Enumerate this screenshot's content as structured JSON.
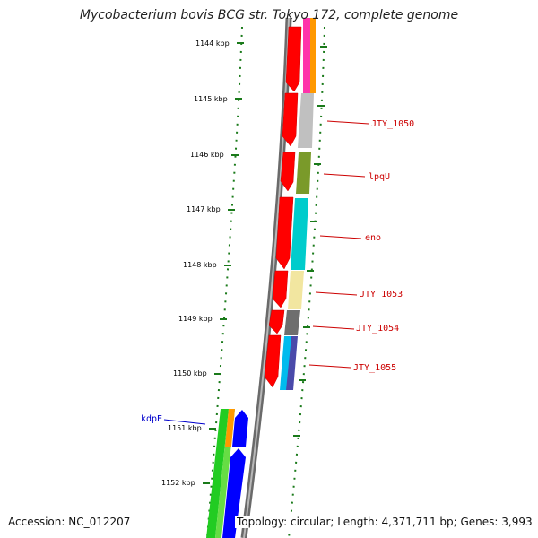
{
  "title": "Mycobacterium bovis BCG str. Tokyo 172, complete genome",
  "accession_text": "Accession: NC_012207",
  "topology_text": "Topology: circular; Length: 4,371,711 bp; Genes: 3,993",
  "scale_labels": [
    "1144 kbp",
    "1145 kbp",
    "1146 kbp",
    "1147 kbp",
    "1148 kbp",
    "1149 kbp",
    "1150 kbp",
    "1151 kbp",
    "1152 kbp"
  ],
  "gene_labels": [
    {
      "text": "JTY_1050",
      "color": "#cc0000"
    },
    {
      "text": "lpqU",
      "color": "#cc0000"
    },
    {
      "text": "eno",
      "color": "#cc0000"
    },
    {
      "text": "JTY_1053",
      "color": "#cc0000"
    },
    {
      "text": "JTY_1054",
      "color": "#cc0000"
    },
    {
      "text": "JTY_1055",
      "color": "#cc0000"
    },
    {
      "text": "kdpE",
      "color": "#0000cc"
    }
  ],
  "colors": {
    "scale_tick": "#1a7a1a",
    "backbone": "#8a8a8a",
    "forward_gene": "#ff0000",
    "reverse_gene": "#0000ff"
  }
}
